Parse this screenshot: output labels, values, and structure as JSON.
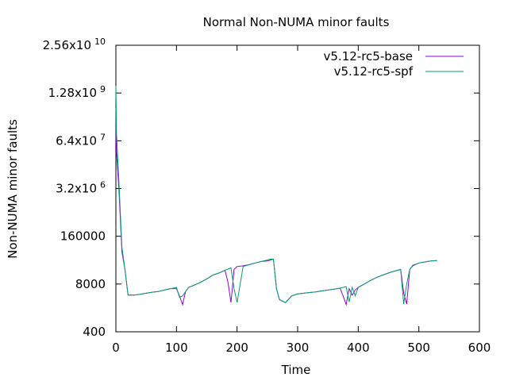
{
  "chart_data": {
    "type": "line",
    "title": "Normal Non-NUMA minor faults",
    "xlabel": "Time",
    "ylabel": "Non-NUMA minor faults",
    "xlim": [
      0,
      600
    ],
    "ylim": [
      400,
      25600000000
    ],
    "yscale": "log",
    "grid": false,
    "legend_position": "top-right",
    "x_ticks": [
      "0",
      "100",
      "200",
      "300",
      "400",
      "500",
      "600"
    ],
    "y_ticks": [
      {
        "value": 400,
        "mantissa": "400",
        "exp": ""
      },
      {
        "value": 8000,
        "mantissa": "8000",
        "exp": ""
      },
      {
        "value": 160000,
        "mantissa": "160000",
        "exp": ""
      },
      {
        "value": 3200000,
        "mantissa": "3.2x10",
        "exp": "6"
      },
      {
        "value": 64000000,
        "mantissa": "6.4x10",
        "exp": "7"
      },
      {
        "value": 1280000000,
        "mantissa": "1.28x10",
        "exp": "9"
      },
      {
        "value": 25600000000,
        "mantissa": "2.56x10",
        "exp": "10"
      }
    ],
    "series": [
      {
        "name": "v5.12-rc5-base",
        "color": "#9400d3",
        "x": [
          0,
          1,
          5,
          10,
          15,
          20,
          30,
          40,
          50,
          60,
          70,
          80,
          90,
          100,
          105,
          110,
          115,
          120,
          130,
          140,
          150,
          160,
          170,
          180,
          185,
          190,
          195,
          200,
          210,
          220,
          230,
          240,
          250,
          255,
          260,
          265,
          270,
          280,
          290,
          300,
          310,
          320,
          330,
          340,
          350,
          360,
          370,
          375,
          380,
          385,
          390,
          395,
          400,
          410,
          420,
          430,
          440,
          450,
          460,
          470,
          475,
          480,
          485,
          490,
          500,
          510,
          520,
          530
        ],
        "y": [
          500000000,
          30000000,
          3000000,
          60000,
          20000,
          4000,
          4000,
          4200,
          4500,
          4800,
          5000,
          5500,
          6000,
          6000,
          3800,
          2200,
          5000,
          6500,
          7500,
          9000,
          11000,
          14000,
          16000,
          19000,
          9000,
          2500,
          20000,
          24000,
          25000,
          27000,
          30000,
          33000,
          34000,
          36000,
          38000,
          6000,
          3000,
          2500,
          3800,
          4300,
          4500,
          4700,
          4900,
          5200,
          5500,
          5800,
          6200,
          3800,
          2200,
          6000,
          4000,
          5500,
          6500,
          8000,
          10000,
          12000,
          14000,
          16000,
          18000,
          20000,
          4500,
          2300,
          20000,
          25000,
          30000,
          32000,
          34000,
          35000
        ]
      },
      {
        "name": "v5.12-rc5-spf",
        "color": "#009e73",
        "x": [
          0,
          1,
          5,
          10,
          15,
          20,
          30,
          40,
          50,
          60,
          70,
          80,
          90,
          95,
          100,
          105,
          110,
          115,
          120,
          130,
          140,
          150,
          160,
          170,
          180,
          190,
          195,
          200,
          210,
          220,
          230,
          240,
          250,
          255,
          260,
          265,
          270,
          280,
          290,
          300,
          310,
          320,
          330,
          340,
          350,
          360,
          370,
          380,
          385,
          390,
          395,
          400,
          410,
          420,
          430,
          440,
          450,
          460,
          465,
          470,
          475,
          480,
          485,
          490,
          500,
          510,
          520,
          530
        ],
        "y": [
          2000000000,
          100000000,
          5000000,
          80000,
          20000,
          4000,
          4000,
          4200,
          4500,
          4800,
          5000,
          5500,
          6000,
          6200,
          6500,
          3500,
          3800,
          5000,
          6500,
          7500,
          9000,
          11000,
          14000,
          16000,
          19000,
          22000,
          6000,
          2500,
          24000,
          27000,
          30000,
          33000,
          36000,
          38000,
          38000,
          6000,
          3000,
          2500,
          3800,
          4300,
          4500,
          4700,
          4900,
          5200,
          5500,
          5800,
          6200,
          6800,
          2600,
          6500,
          3800,
          6500,
          8000,
          10000,
          12000,
          14000,
          16000,
          18000,
          19000,
          20000,
          2300,
          8000,
          20000,
          26000,
          30000,
          32000,
          34000,
          35000
        ]
      }
    ]
  }
}
